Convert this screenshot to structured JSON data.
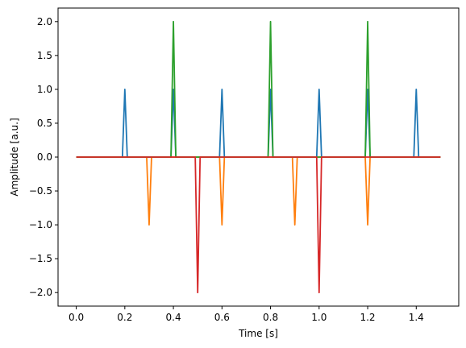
{
  "chart_data": {
    "type": "line",
    "title": "",
    "xlabel": "Time [s]",
    "ylabel": "Amplitude [a.u.]",
    "xlim": [
      -0.075,
      1.575
    ],
    "ylim": [
      -2.2,
      2.2
    ],
    "xticks": [
      0.0,
      0.2,
      0.4,
      0.6,
      0.8,
      1.0,
      1.2,
      1.4
    ],
    "xtick_labels": [
      "0.0",
      "0.2",
      "0.4",
      "0.6",
      "0.8",
      "1.0",
      "1.2",
      "1.4"
    ],
    "yticks": [
      -2.0,
      -1.5,
      -1.0,
      -0.5,
      0.0,
      0.5,
      1.0,
      1.5,
      2.0
    ],
    "ytick_labels": [
      "−2.0",
      "−1.5",
      "−1.0",
      "−0.5",
      "0.0",
      "0.5",
      "1.0",
      "1.5",
      "2.0"
    ],
    "grid": false,
    "legend": "none",
    "series": [
      {
        "color": "#1f77b4",
        "x": [
          0.0,
          0.19,
          0.2,
          0.21,
          0.39,
          0.4,
          0.41,
          0.59,
          0.6,
          0.61,
          0.79,
          0.8,
          0.81,
          0.99,
          1.0,
          1.01,
          1.19,
          1.2,
          1.21,
          1.39,
          1.4,
          1.41,
          1.5
        ],
        "y": [
          0,
          0,
          1,
          0,
          0,
          1,
          0,
          0,
          1,
          0,
          0,
          1,
          0,
          0,
          1,
          0,
          0,
          1,
          0,
          0,
          1,
          0,
          0
        ]
      },
      {
        "color": "#ff7f0e",
        "x": [
          0.0,
          0.29,
          0.3,
          0.31,
          0.59,
          0.6,
          0.61,
          0.89,
          0.9,
          0.91,
          1.19,
          1.2,
          1.21,
          1.5
        ],
        "y": [
          0,
          0,
          -1,
          0,
          0,
          -1,
          0,
          0,
          -1,
          0,
          0,
          -1,
          0,
          0
        ]
      },
      {
        "color": "#2ca02c",
        "x": [
          0.0,
          0.39,
          0.4,
          0.41,
          0.79,
          0.8,
          0.81,
          1.19,
          1.2,
          1.21,
          1.5
        ],
        "y": [
          0,
          0,
          2,
          0,
          0,
          2,
          0,
          0,
          2,
          0,
          0
        ]
      },
      {
        "color": "#d62728",
        "x": [
          0.0,
          0.49,
          0.5,
          0.51,
          0.99,
          1.0,
          1.01,
          1.5
        ],
        "y": [
          0,
          0,
          -2,
          0,
          0,
          -2,
          0,
          0
        ]
      }
    ]
  }
}
